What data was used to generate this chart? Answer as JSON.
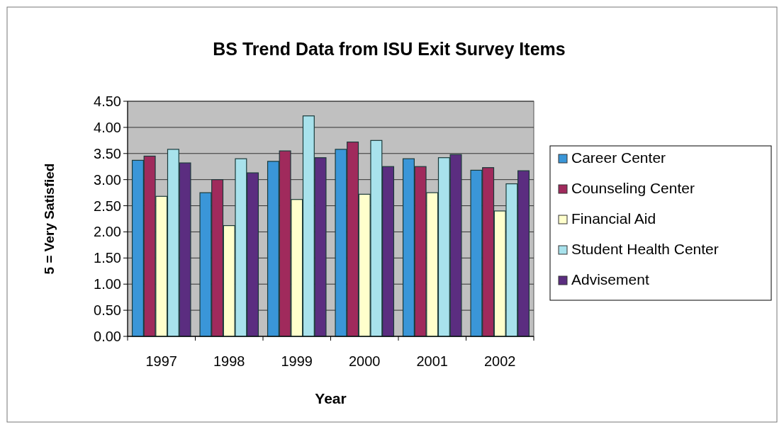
{
  "chart_data": {
    "type": "bar",
    "title": "BS Trend Data from ISU Exit Survey Items",
    "xlabel": "Year",
    "ylabel": "5 = Very Satisfied",
    "categories": [
      "1997",
      "1998",
      "1999",
      "2000",
      "2001",
      "2002"
    ],
    "series": [
      {
        "name": "Career Center",
        "color": "#3a96d8",
        "values": [
          3.37,
          2.75,
          3.35,
          3.58,
          3.4,
          3.18
        ]
      },
      {
        "name": "Counseling Center",
        "color": "#a02a5c",
        "values": [
          3.45,
          3.0,
          3.55,
          3.72,
          3.25,
          3.23
        ]
      },
      {
        "name": "Financial Aid",
        "color": "#ffffcc",
        "values": [
          2.68,
          2.12,
          2.62,
          2.72,
          2.75,
          2.4
        ]
      },
      {
        "name": "Student Health Center",
        "color": "#a8e2ec",
        "values": [
          3.58,
          3.4,
          4.22,
          3.75,
          3.42,
          2.92
        ]
      },
      {
        "name": "Advisement",
        "color": "#5b2d80",
        "values": [
          3.32,
          3.13,
          3.42,
          3.25,
          3.48,
          3.17
        ]
      }
    ],
    "ylim": [
      0,
      4.5
    ],
    "yticks": [
      {
        "value": 0,
        "label": "0.00"
      },
      {
        "value": 0.5,
        "label": "0.50"
      },
      {
        "value": 1,
        "label": "1.00"
      },
      {
        "value": 1.5,
        "label": "1.50"
      },
      {
        "value": 2,
        "label": "2.00"
      },
      {
        "value": 2.5,
        "label": "2.50"
      },
      {
        "value": 3,
        "label": "3.00"
      },
      {
        "value": 3.5,
        "label": "3.50"
      },
      {
        "value": 4,
        "label": "4.00"
      },
      {
        "value": 4.5,
        "label": "4.50"
      }
    ],
    "grid": "y",
    "legend": "right"
  }
}
